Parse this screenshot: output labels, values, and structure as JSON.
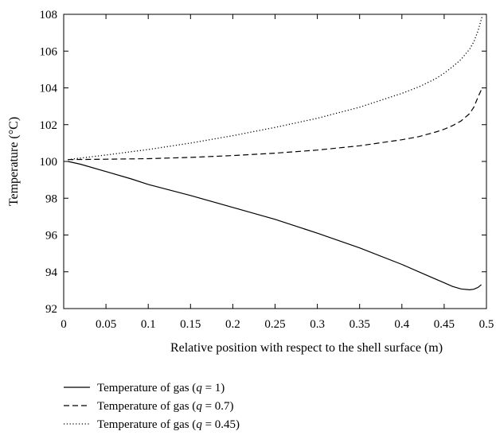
{
  "chart_data": {
    "type": "line",
    "title": "",
    "xlabel": "Relative position with respect to the shell surface (m)",
    "ylabel": "Temperature (°C)",
    "xlim": [
      0,
      0.5
    ],
    "ylim": [
      92,
      108
    ],
    "xticks": [
      0,
      0.05,
      0.1,
      0.15,
      0.2,
      0.25,
      0.3,
      0.35,
      0.4,
      0.45,
      0.5
    ],
    "xtick_labels": [
      "0",
      "0.05",
      "0.1",
      "0.15",
      "0.2",
      "0.25",
      "0.3",
      "0.35",
      "0.4",
      "0.45",
      "0.5"
    ],
    "yticks": [
      92,
      94,
      96,
      98,
      100,
      102,
      104,
      106,
      108
    ],
    "ytick_labels": [
      "92",
      "94",
      "96",
      "98",
      "100",
      "102",
      "104",
      "106",
      "108"
    ],
    "grid": false,
    "legend_position": "bottom-left, below plot",
    "series": [
      {
        "name": "Temperature of gas (q = 1)",
        "legend_prefix": "Temperature of gas (",
        "legend_var": "q",
        "legend_suffix": " = 1)",
        "style": "solid",
        "color": "#000000",
        "x": [
          0.005,
          0.02,
          0.05,
          0.08,
          0.1,
          0.15,
          0.2,
          0.25,
          0.3,
          0.35,
          0.4,
          0.43,
          0.45,
          0.46,
          0.47,
          0.48,
          0.485,
          0.49,
          0.494
        ],
        "y": [
          100.0,
          99.85,
          99.45,
          99.05,
          98.75,
          98.15,
          97.5,
          96.85,
          96.1,
          95.3,
          94.4,
          93.8,
          93.4,
          93.2,
          93.07,
          93.02,
          93.05,
          93.15,
          93.3
        ]
      },
      {
        "name": "Temperature of gas (q = 0.7)",
        "legend_prefix": "Temperature of gas (",
        "legend_var": "q",
        "legend_suffix": " = 0.7)",
        "style": "dashed",
        "color": "#000000",
        "x": [
          0.005,
          0.05,
          0.1,
          0.15,
          0.2,
          0.25,
          0.3,
          0.35,
          0.4,
          0.42,
          0.44,
          0.45,
          0.46,
          0.47,
          0.48,
          0.485,
          0.49,
          0.495
        ],
        "y": [
          100.1,
          100.12,
          100.15,
          100.22,
          100.32,
          100.45,
          100.62,
          100.85,
          101.18,
          101.35,
          101.6,
          101.75,
          101.95,
          102.2,
          102.6,
          102.95,
          103.5,
          104.0
        ]
      },
      {
        "name": "Temperature of gas (q = 0.45)",
        "legend_prefix": "Temperature of gas (",
        "legend_var": "q",
        "legend_suffix": " = 0.45)",
        "style": "dotted",
        "color": "#000000",
        "x": [
          0.005,
          0.05,
          0.1,
          0.15,
          0.2,
          0.25,
          0.3,
          0.35,
          0.4,
          0.42,
          0.44,
          0.45,
          0.46,
          0.47,
          0.48,
          0.485,
          0.49,
          0.495
        ],
        "y": [
          100.1,
          100.35,
          100.65,
          101.0,
          101.4,
          101.85,
          102.35,
          102.95,
          103.7,
          104.05,
          104.5,
          104.8,
          105.15,
          105.55,
          106.1,
          106.5,
          107.1,
          107.9
        ]
      }
    ]
  }
}
